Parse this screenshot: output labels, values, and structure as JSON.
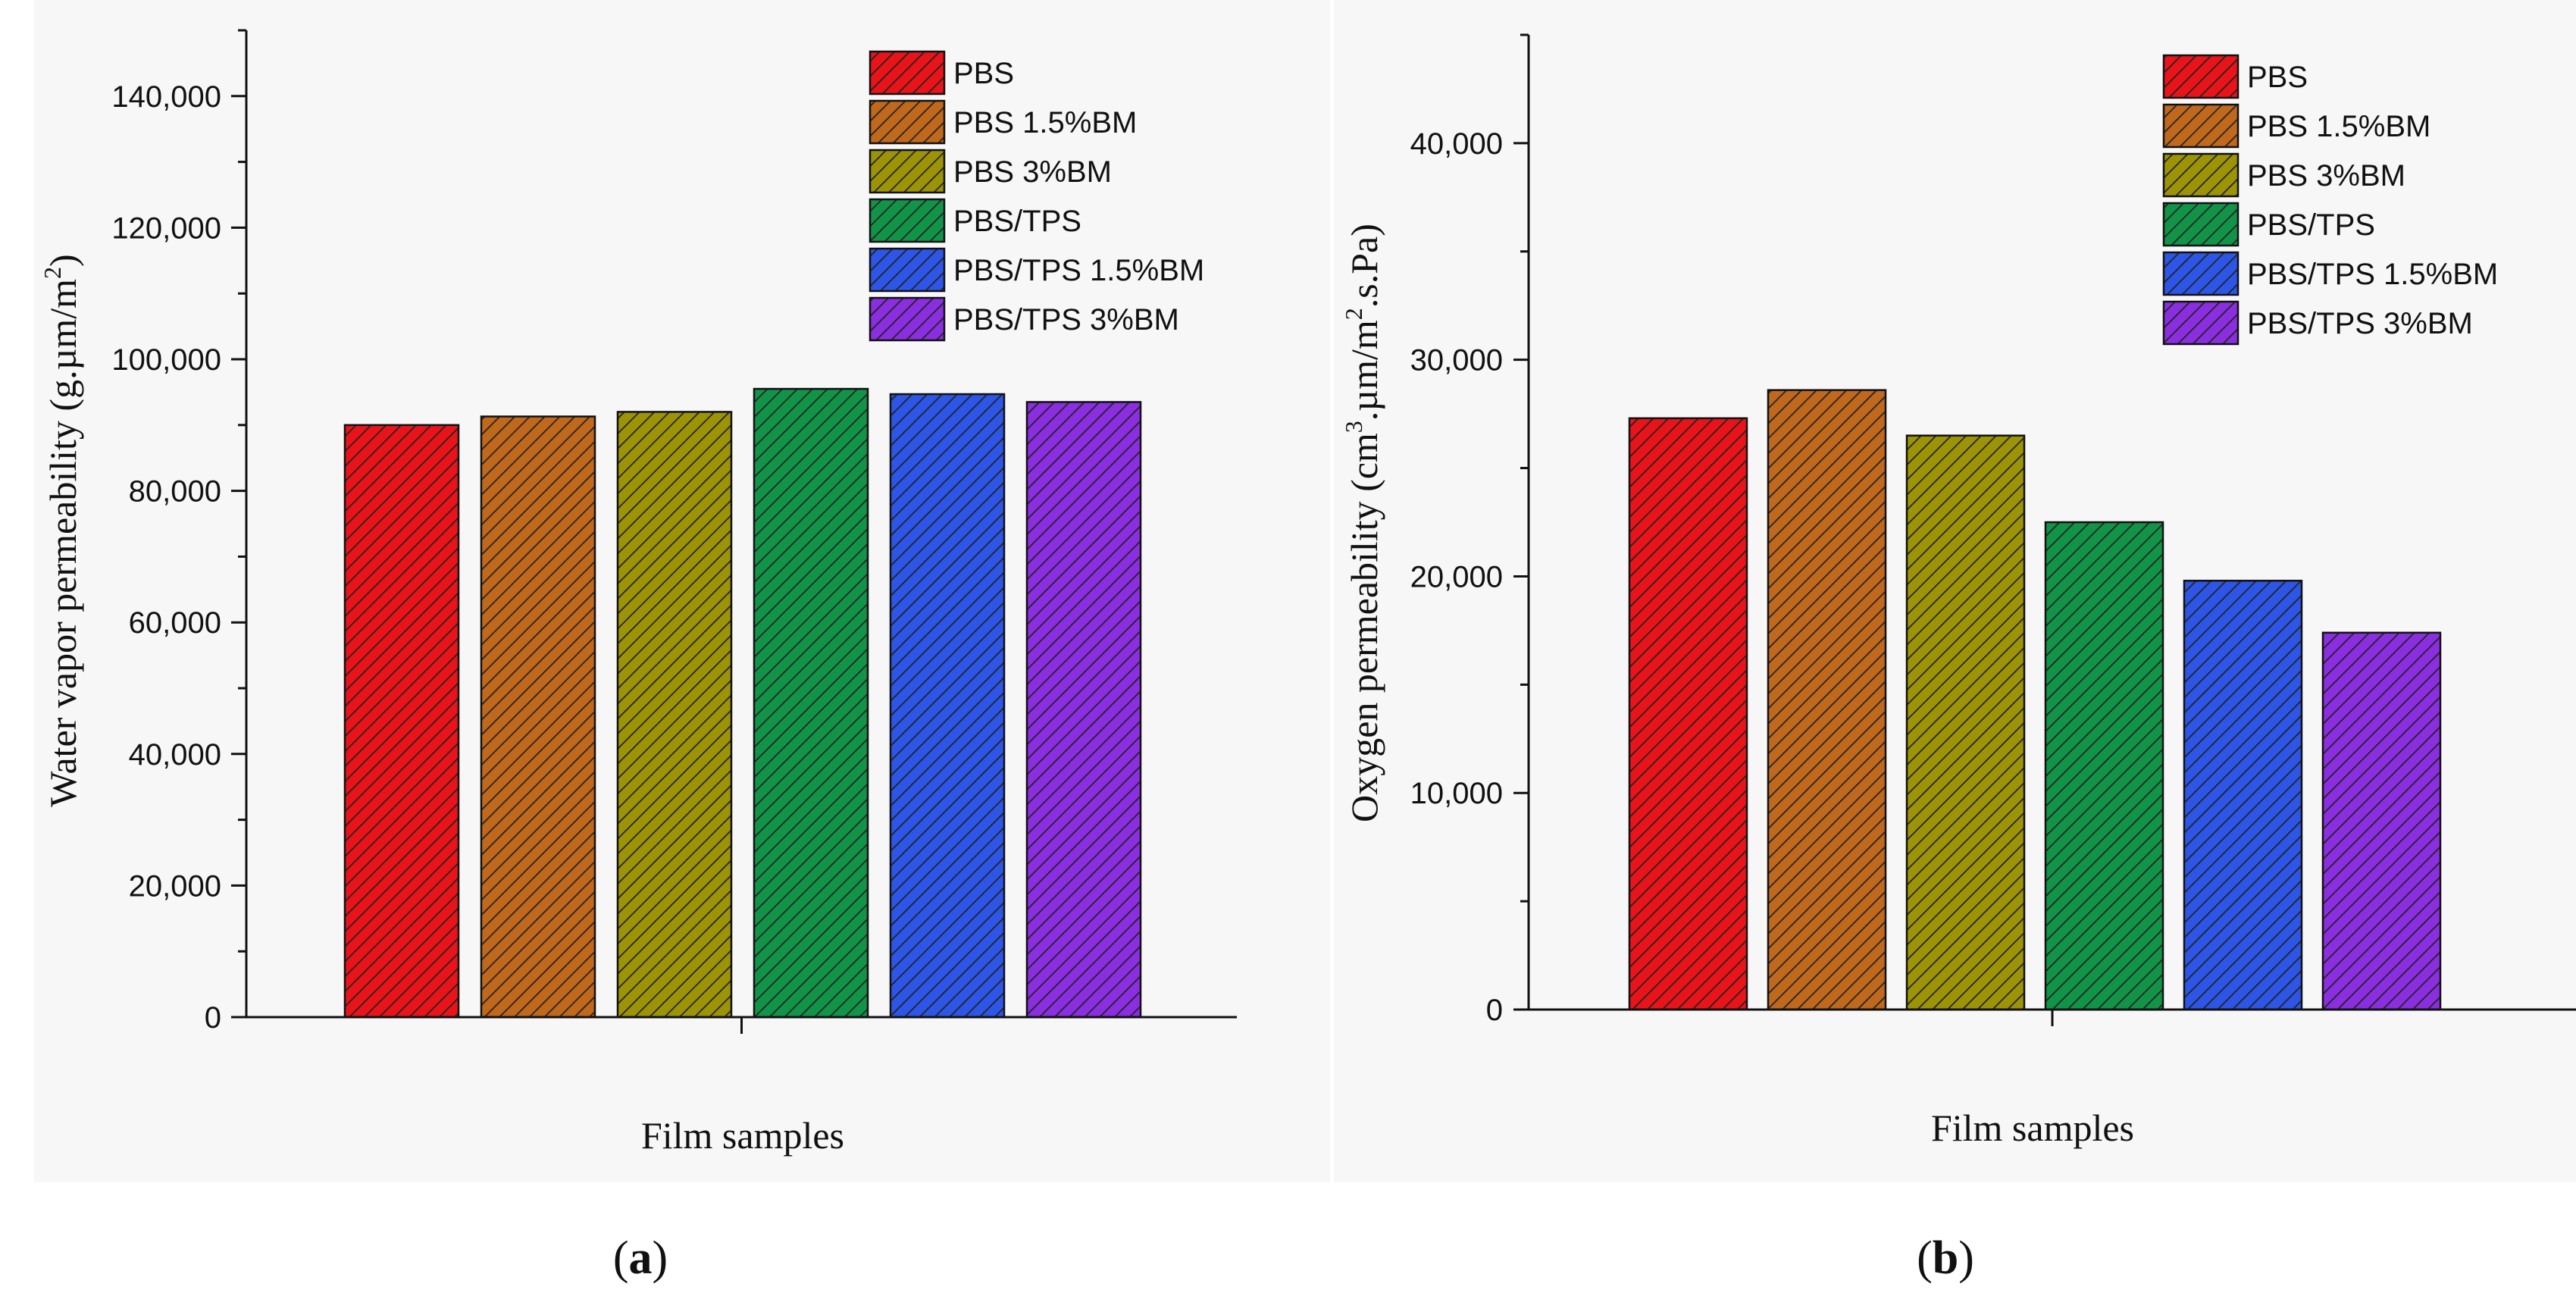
{
  "hatch_color": "#222222",
  "chart_data": [
    {
      "panel_label": "a",
      "type": "bar",
      "title": "",
      "xlabel": "Film samples",
      "ylabel_parts": [
        "Water vapor permeability (g.µm/m",
        "2",
        ")"
      ],
      "ylim": [
        0,
        150000
      ],
      "yticks": [
        0,
        20000,
        40000,
        60000,
        80000,
        100000,
        120000,
        140000
      ],
      "ytick_labels": [
        "0",
        "20,000",
        "40,000",
        "60,000",
        "80,000",
        "100,000",
        "120,000",
        "140,000"
      ],
      "categories": [
        "PBS",
        "PBS 1.5%BM",
        "PBS 3%BM",
        "PBS/TPS",
        "PBS/TPS 1.5%BM",
        "PBS/TPS 3%BM"
      ],
      "values": [
        90000,
        91300,
        92000,
        95500,
        94700,
        93500
      ],
      "colors": [
        "#e8141a",
        "#c0681c",
        "#9c9406",
        "#119448",
        "#2d55e6",
        "#8a2ee0"
      ],
      "legend_position": "top-right"
    },
    {
      "panel_label": "b",
      "type": "bar",
      "title": "",
      "xlabel": "Film samples",
      "ylabel_parts": [
        "Oxygen permeability (cm",
        "3",
        ".µm/m",
        "2",
        ".s.Pa)"
      ],
      "ylim": [
        0,
        45000
      ],
      "yticks": [
        0,
        10000,
        20000,
        30000,
        40000
      ],
      "ytick_labels": [
        "0",
        "10,000",
        "20,000",
        "30,000",
        "40,000"
      ],
      "categories": [
        "PBS",
        "PBS 1.5%BM",
        "PBS 3%BM",
        "PBS/TPS",
        "PBS/TPS 1.5%BM",
        "PBS/TPS 3%BM"
      ],
      "values": [
        27300,
        28600,
        26500,
        22500,
        19800,
        17400
      ],
      "colors": [
        "#e8141a",
        "#c0681c",
        "#9c9406",
        "#119448",
        "#2d55e6",
        "#8a2ee0"
      ],
      "legend_position": "top-right"
    }
  ]
}
